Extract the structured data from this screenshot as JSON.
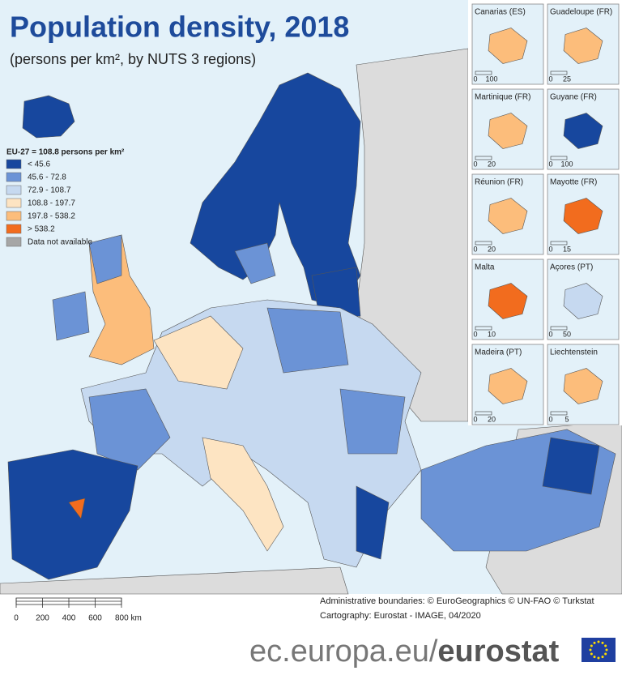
{
  "header": {
    "title": "Population density, 2018",
    "subtitle": "(persons per km², by NUTS 3 regions)"
  },
  "legend": {
    "title": "EU-27 = 108.8 persons per km²",
    "items": [
      {
        "label": "< 45.6",
        "color": "#17479e"
      },
      {
        "label": "45.6  - 72.8",
        "color": "#6b93d6"
      },
      {
        "label": "72.9 - 108.7",
        "color": "#c6d9f0"
      },
      {
        "label": "108.8 - 197.7",
        "color": "#fde4c2"
      },
      {
        "label": "197.8 - 538.2",
        "color": "#fcbd7b"
      },
      {
        "label": "> 538.2",
        "color": "#f26c1e"
      },
      {
        "label": "Data not available",
        "color": "#a6a6a6"
      }
    ]
  },
  "insets": [
    {
      "name": "Canarias (ES)",
      "scale": [
        "0",
        "100"
      ],
      "color": "#fcbd7b"
    },
    {
      "name": "Guadeloupe (FR)",
      "scale": [
        "0",
        "25"
      ],
      "color": "#fcbd7b"
    },
    {
      "name": "Martinique (FR)",
      "scale": [
        "0",
        "20"
      ],
      "color": "#fcbd7b"
    },
    {
      "name": "Guyane (FR)",
      "scale": [
        "0",
        "100"
      ],
      "color": "#17479e"
    },
    {
      "name": "Réunion (FR)",
      "scale": [
        "0",
        "20"
      ],
      "color": "#fcbd7b"
    },
    {
      "name": "Mayotte (FR)",
      "scale": [
        "0",
        "15"
      ],
      "color": "#f26c1e"
    },
    {
      "name": "Malta",
      "scale": [
        "0",
        "10"
      ],
      "color": "#f26c1e"
    },
    {
      "name": "Açores (PT)",
      "scale": [
        "0",
        "50"
      ],
      "color": "#c6d9f0"
    },
    {
      "name": "Madeira (PT)",
      "scale": [
        "0",
        "20"
      ],
      "color": "#fcbd7b"
    },
    {
      "name": "Liechtenstein",
      "scale": [
        "0",
        "5"
      ],
      "color": "#fcbd7b"
    }
  ],
  "scale_bar": [
    "0",
    "200",
    "400",
    "600",
    "800 km"
  ],
  "credits": [
    "Administrative boundaries: © EuroGeographics © UN-FAO © Turkstat",
    "Cartography: Eurostat - IMAGE, 04/2020"
  ],
  "footer": {
    "domain": "ec.europa.eu/",
    "brand": "eurostat"
  }
}
